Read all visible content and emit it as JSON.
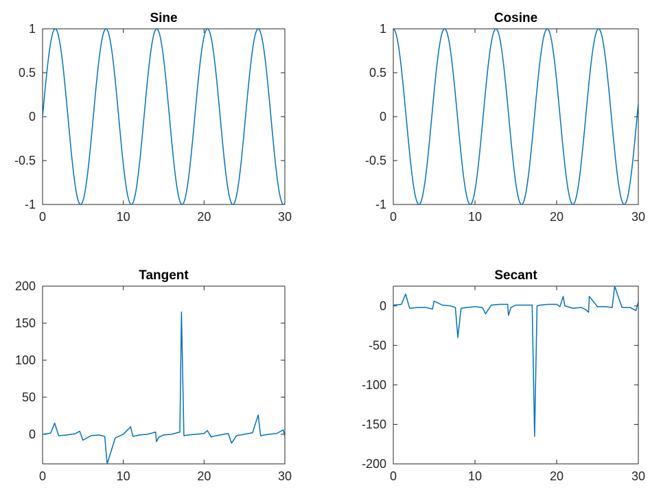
{
  "chart_data": [
    {
      "type": "line",
      "title": "Sine",
      "xlabel": "",
      "ylabel": "",
      "xlim": [
        0,
        30
      ],
      "ylim": [
        -1,
        1
      ],
      "xticks": [
        0,
        10,
        20,
        30
      ],
      "xtick_labels": [
        "0",
        "10",
        "20",
        "30"
      ],
      "yticks": [
        -1,
        -0.5,
        0,
        0.5,
        1
      ],
      "ytick_labels": [
        "-1",
        "-0.5",
        "0",
        "0.5",
        "1"
      ],
      "grid": false,
      "color": "#0072BD",
      "series": [
        {
          "x": [
            0,
            0.785,
            1.571,
            2.356,
            3.142,
            3.927,
            4.712,
            5.498,
            6.283,
            7.069,
            7.854,
            8.639,
            9.425,
            10.21,
            10.996,
            11.781,
            12.566,
            13.352,
            14.137,
            14.923,
            15.708,
            16.493,
            17.279,
            18.064,
            18.85,
            19.635,
            20.42,
            21.206,
            21.991,
            22.777,
            23.562,
            24.347,
            25.133,
            25.918,
            26.704,
            27.489,
            28.274,
            29.06,
            29.845,
            30
          ],
          "y": [
            0,
            0.707,
            1,
            0.707,
            0,
            -0.707,
            -1,
            -0.707,
            0,
            0.707,
            1,
            0.707,
            0,
            -0.707,
            -1,
            -0.707,
            0,
            0.707,
            1,
            0.707,
            0,
            -0.707,
            -1,
            -0.707,
            0,
            0.707,
            1,
            0.707,
            0,
            -0.707,
            -1,
            -0.707,
            0,
            0.707,
            1,
            0.707,
            0,
            -0.707,
            -1,
            -0.988
          ]
        }
      ]
    },
    {
      "type": "line",
      "title": "Cosine",
      "xlabel": "",
      "ylabel": "",
      "xlim": [
        0,
        30
      ],
      "ylim": [
        -1,
        1
      ],
      "xticks": [
        0,
        10,
        20,
        30
      ],
      "xtick_labels": [
        "0",
        "10",
        "20",
        "30"
      ],
      "yticks": [
        -1,
        -0.5,
        0,
        0.5,
        1
      ],
      "ytick_labels": [
        "-1",
        "-0.5",
        "0",
        "0.5",
        "1"
      ],
      "grid": false,
      "color": "#0072BD",
      "series": [
        {
          "x": [
            0,
            0.785,
            1.571,
            2.356,
            3.142,
            3.927,
            4.712,
            5.498,
            6.283,
            7.069,
            7.854,
            8.639,
            9.425,
            10.21,
            10.996,
            11.781,
            12.566,
            13.352,
            14.137,
            14.923,
            15.708,
            16.493,
            17.279,
            18.064,
            18.85,
            19.635,
            20.42,
            21.206,
            21.991,
            22.777,
            23.562,
            24.347,
            25.133,
            25.918,
            26.704,
            27.489,
            28.274,
            29.06,
            29.845,
            30
          ],
          "y": [
            1,
            0.707,
            0,
            -0.707,
            -1,
            -0.707,
            0,
            0.707,
            1,
            0.707,
            0,
            -0.707,
            -1,
            -0.707,
            0,
            0.707,
            1,
            0.707,
            0,
            -0.707,
            -1,
            -0.707,
            0,
            0.707,
            1,
            0.707,
            0,
            -0.707,
            -1,
            -0.707,
            0,
            0.707,
            1,
            0.707,
            0,
            -0.707,
            -1,
            -0.707,
            0,
            0.154
          ]
        }
      ]
    },
    {
      "type": "line",
      "title": "Tangent",
      "xlabel": "",
      "ylabel": "",
      "xlim": [
        0,
        30
      ],
      "ylim": [
        -40,
        200
      ],
      "xticks": [
        0,
        10,
        20,
        30
      ],
      "xtick_labels": [
        "0",
        "10",
        "20",
        "30"
      ],
      "yticks": [
        0,
        50,
        100,
        150,
        200
      ],
      "ytick_labels": [
        "0",
        "50",
        "100",
        "150",
        "200"
      ],
      "grid": false,
      "color": "#0072BD",
      "series": [
        {
          "x": [
            0,
            1,
            1.5,
            2,
            3,
            4,
            4.6,
            5,
            6,
            7,
            7.7,
            8,
            9,
            10,
            10.9,
            11.2,
            12,
            13,
            14,
            14.1,
            14.4,
            15,
            16,
            17,
            17.2,
            17.5,
            18,
            19,
            20,
            20.4,
            20.9,
            21,
            22,
            23,
            23.4,
            23.9,
            24,
            25,
            26,
            26.7,
            27,
            28,
            29,
            29.8,
            30
          ],
          "y": [
            0,
            1.5,
            15,
            -2,
            -1,
            0.5,
            4,
            -8,
            -2,
            -1,
            -3,
            -40,
            -5,
            0,
            10,
            -3,
            -1,
            0,
            3,
            -10,
            -4,
            -1,
            0,
            3,
            165,
            -2,
            -1,
            0,
            1,
            5,
            -4,
            -3,
            -1,
            1,
            -12,
            -4,
            -2,
            0,
            2,
            26,
            -2,
            0,
            1,
            6,
            -3
          ]
        }
      ]
    },
    {
      "type": "line",
      "title": "Secant",
      "xlabel": "",
      "ylabel": "",
      "xlim": [
        0,
        30
      ],
      "ylim": [
        -200,
        25
      ],
      "xticks": [
        0,
        10,
        20,
        30
      ],
      "xtick_labels": [
        "0",
        "10",
        "20",
        "30"
      ],
      "yticks": [
        -200,
        -150,
        -100,
        -50,
        0
      ],
      "ytick_labels": [
        "-200",
        "-150",
        "-100",
        "-50",
        "0"
      ],
      "grid": false,
      "color": "#0072BD",
      "series": [
        {
          "x": [
            0,
            1,
            1.5,
            2,
            3,
            4,
            4.8,
            5,
            6,
            7,
            7.6,
            7.9,
            8.3,
            9,
            10,
            10.9,
            11.3,
            12,
            13,
            14,
            14.1,
            14.4,
            15,
            16,
            17,
            17.3,
            17.6,
            18,
            19,
            20,
            20.4,
            20.8,
            21,
            22,
            23,
            23.6,
            23.9,
            24,
            25,
            26,
            26.8,
            27.1,
            28,
            29,
            29.7,
            30
          ],
          "y": [
            1,
            2,
            15,
            -3,
            -2,
            -2,
            -4,
            6,
            1,
            0,
            -2,
            -40,
            -3,
            -2,
            -1,
            -2,
            -10,
            1,
            2,
            2,
            -12,
            -2,
            1,
            1,
            1,
            -165,
            0,
            1,
            2,
            2,
            -1,
            12,
            0,
            -3,
            -2,
            -5,
            -8,
            12,
            -1,
            -1,
            -2,
            25,
            -2,
            -2,
            -6,
            5
          ]
        }
      ]
    }
  ]
}
